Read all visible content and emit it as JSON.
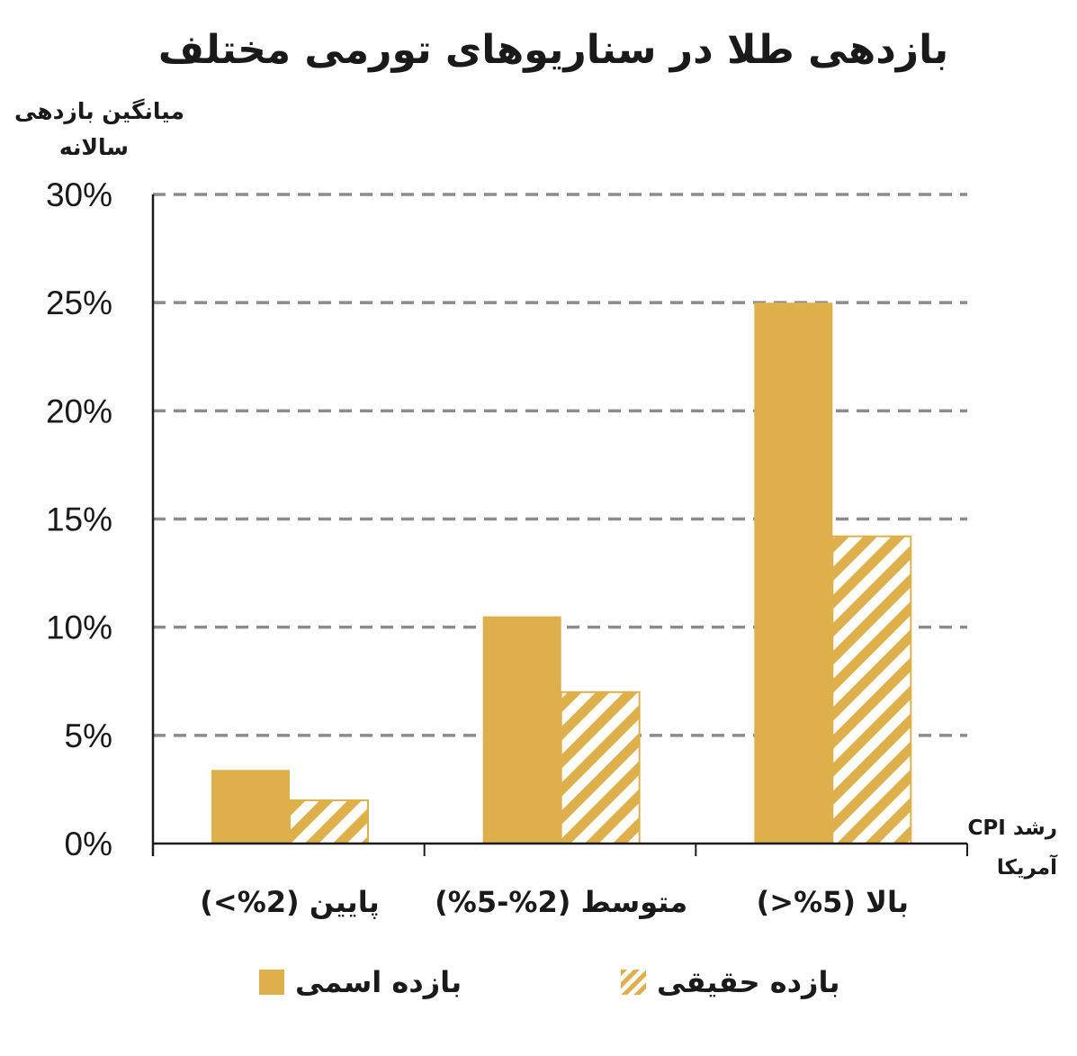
{
  "chart_data": {
    "type": "bar",
    "title": "بازدهی طلا در سناریوهای تورمی مختلف",
    "ylabel": [
      "میانگین بازدهی",
      "سالانه"
    ],
    "xlabel": [
      "رشد CPI",
      "آمریکا"
    ],
    "ylim": [
      0,
      30
    ],
    "yticks": [
      "0%",
      "5%",
      "10%",
      "15%",
      "20%",
      "25%",
      "30%"
    ],
    "ytick_values": [
      0,
      5,
      10,
      15,
      20,
      25,
      30
    ],
    "grid": true,
    "legend_placement": "bottom",
    "categories": [
      "پایین (2%>)",
      "متوسط (2%-5%)",
      "بالا (5%<)"
    ],
    "series": [
      {
        "name": "بازده اسمی",
        "values": [
          3.4,
          10.5,
          25.0
        ],
        "color": "#DDB04C",
        "pattern": "solid"
      },
      {
        "name": "بازده حقیقی",
        "values": [
          2.0,
          7.0,
          14.2
        ],
        "color": "#DDB04C",
        "pattern": "hatched"
      }
    ]
  }
}
